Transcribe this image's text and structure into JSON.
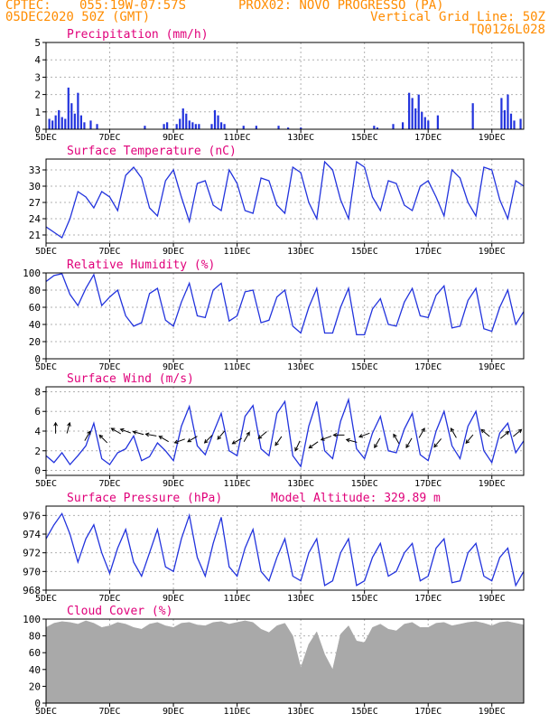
{
  "header": {
    "center_label": "CPTEC:",
    "coords": "055:19W-07:57S",
    "location": "PROX02: NOVO PROGRESSO (PA)",
    "run_date": "05DEC2020 50Z (GMT)",
    "grid_note": "Vertical Grid Line: 50Z",
    "model_code": "TQ0126L028"
  },
  "colors": {
    "header": "#ff8c00",
    "title": "#e0007a",
    "series": "#2233dd",
    "cloud": "#a9a9a9",
    "grid": "#b0b0b0"
  },
  "chart_data": [
    {
      "id": "precip",
      "type": "bar",
      "title": "Precipitation (mm/h)",
      "ylim": [
        0,
        5
      ],
      "yticks": [
        0,
        1,
        2,
        3,
        4,
        5
      ],
      "xticks": [
        "5DEC",
        "7DEC",
        "9DEC",
        "11DEC",
        "13DEC",
        "15DEC",
        "17DEC",
        "19DEC"
      ],
      "xlim_days": [
        5,
        20
      ],
      "x": [
        5.1,
        5.2,
        5.3,
        5.4,
        5.5,
        5.6,
        5.7,
        5.8,
        5.9,
        6.0,
        6.1,
        6.2,
        6.4,
        6.6,
        8.1,
        8.7,
        8.8,
        9.1,
        9.2,
        9.3,
        9.4,
        9.5,
        9.6,
        9.7,
        9.8,
        10.2,
        10.3,
        10.4,
        10.5,
        10.6,
        11.2,
        11.6,
        12.3,
        12.6,
        13.0,
        15.3,
        15.4,
        15.9,
        16.2,
        16.4,
        16.5,
        16.6,
        16.7,
        16.8,
        16.9,
        17.0,
        17.3,
        18.4,
        19.3,
        19.4,
        19.5,
        19.6,
        19.7,
        19.9
      ],
      "values": [
        0.6,
        0.5,
        0.8,
        1.1,
        0.7,
        0.6,
        2.4,
        1.5,
        0.9,
        2.1,
        0.8,
        0.4,
        0.5,
        0.3,
        0.2,
        0.3,
        0.4,
        0.3,
        0.6,
        1.2,
        0.9,
        0.5,
        0.4,
        0.3,
        0.3,
        0.3,
        1.1,
        0.8,
        0.4,
        0.3,
        0.2,
        0.2,
        0.2,
        0.1,
        0.1,
        0.2,
        0.1,
        0.3,
        0.4,
        2.1,
        1.8,
        1.2,
        2.0,
        1.0,
        0.7,
        0.5,
        0.8,
        1.5,
        1.8,
        1.1,
        2.0,
        0.9,
        0.5,
        0.6
      ]
    },
    {
      "id": "temp",
      "type": "line",
      "title": "Surface Temperature (nC)",
      "ylim": [
        19.5,
        35
      ],
      "yticks": [
        21,
        24,
        27,
        30,
        33
      ],
      "xticks": [
        "5DEC",
        "7DEC",
        "9DEC",
        "11DEC",
        "13DEC",
        "15DEC",
        "17DEC",
        "19DEC"
      ],
      "xlim_days": [
        5,
        20
      ],
      "x": [
        5.0,
        5.25,
        5.5,
        5.75,
        6.0,
        6.25,
        6.5,
        6.75,
        7.0,
        7.25,
        7.5,
        7.75,
        8.0,
        8.25,
        8.5,
        8.75,
        9.0,
        9.25,
        9.5,
        9.75,
        10.0,
        10.25,
        10.5,
        10.75,
        11.0,
        11.25,
        11.5,
        11.75,
        12.0,
        12.25,
        12.5,
        12.75,
        13.0,
        13.25,
        13.5,
        13.75,
        14.0,
        14.25,
        14.5,
        14.75,
        15.0,
        15.25,
        15.5,
        15.75,
        16.0,
        16.25,
        16.5,
        16.75,
        17.0,
        17.25,
        17.5,
        17.75,
        18.0,
        18.25,
        18.5,
        18.75,
        19.0,
        19.25,
        19.5,
        19.75,
        20.0
      ],
      "values": [
        22.5,
        21.5,
        20.5,
        24.0,
        29.0,
        28.0,
        26.0,
        29.0,
        28.0,
        25.5,
        32.0,
        33.5,
        31.5,
        26.0,
        24.5,
        31.0,
        33.0,
        28.0,
        23.5,
        30.5,
        31.0,
        26.5,
        25.5,
        33.0,
        30.5,
        25.5,
        25.0,
        31.5,
        31.0,
        26.5,
        25.0,
        33.5,
        32.5,
        27.0,
        24.0,
        34.5,
        33.0,
        27.5,
        24.0,
        34.5,
        33.5,
        28.0,
        25.5,
        31.0,
        30.5,
        26.5,
        25.5,
        30.0,
        31.0,
        28.0,
        24.5,
        33.0,
        31.5,
        27.0,
        24.5,
        33.5,
        33.0,
        27.5,
        24.0,
        31.0,
        30.0
      ]
    },
    {
      "id": "rh",
      "type": "line",
      "title": "Relative Humidity (%)",
      "ylim": [
        0,
        100
      ],
      "yticks": [
        0,
        20,
        40,
        60,
        80,
        100
      ],
      "xticks": [
        "5DEC",
        "7DEC",
        "9DEC",
        "11DEC",
        "13DEC",
        "15DEC",
        "17DEC",
        "19DEC"
      ],
      "xlim_days": [
        5,
        20
      ],
      "x": [
        5.0,
        5.25,
        5.5,
        5.75,
        6.0,
        6.25,
        6.5,
        6.75,
        7.0,
        7.25,
        7.5,
        7.75,
        8.0,
        8.25,
        8.5,
        8.75,
        9.0,
        9.25,
        9.5,
        9.75,
        10.0,
        10.25,
        10.5,
        10.75,
        11.0,
        11.25,
        11.5,
        11.75,
        12.0,
        12.25,
        12.5,
        12.75,
        13.0,
        13.25,
        13.5,
        13.75,
        14.0,
        14.25,
        14.5,
        14.75,
        15.0,
        15.25,
        15.5,
        15.75,
        16.0,
        16.25,
        16.5,
        16.75,
        17.0,
        17.25,
        17.5,
        17.75,
        18.0,
        18.25,
        18.5,
        18.75,
        19.0,
        19.25,
        19.5,
        19.75,
        20.0
      ],
      "values": [
        90,
        97,
        99,
        75,
        62,
        82,
        98,
        62,
        72,
        80,
        50,
        38,
        42,
        76,
        82,
        45,
        38,
        66,
        88,
        50,
        48,
        80,
        88,
        44,
        50,
        78,
        80,
        42,
        45,
        72,
        80,
        38,
        30,
        60,
        82,
        30,
        30,
        60,
        82,
        28,
        28,
        58,
        70,
        40,
        38,
        66,
        82,
        50,
        48,
        74,
        85,
        36,
        38,
        68,
        82,
        35,
        32,
        60,
        80,
        40,
        55
      ]
    },
    {
      "id": "wind",
      "type": "line",
      "title": "Surface Wind (m/s)",
      "ylim": [
        -0.5,
        8.5
      ],
      "yticks": [
        0,
        2,
        4,
        6,
        8
      ],
      "xticks": [
        "5DEC",
        "7DEC",
        "9DEC",
        "11DEC",
        "13DEC",
        "15DEC",
        "17DEC",
        "19DEC"
      ],
      "xlim_days": [
        5,
        20
      ],
      "x": [
        5.0,
        5.25,
        5.5,
        5.75,
        6.0,
        6.25,
        6.5,
        6.75,
        7.0,
        7.25,
        7.5,
        7.75,
        8.0,
        8.25,
        8.5,
        8.75,
        9.0,
        9.25,
        9.5,
        9.75,
        10.0,
        10.25,
        10.5,
        10.75,
        11.0,
        11.25,
        11.5,
        11.75,
        12.0,
        12.25,
        12.5,
        12.75,
        13.0,
        13.25,
        13.5,
        13.75,
        14.0,
        14.25,
        14.5,
        14.75,
        15.0,
        15.25,
        15.5,
        15.75,
        16.0,
        16.25,
        16.5,
        16.75,
        17.0,
        17.25,
        17.5,
        17.75,
        18.0,
        18.25,
        18.5,
        18.75,
        19.0,
        19.25,
        19.5,
        19.75,
        20.0
      ],
      "values": [
        1.5,
        0.8,
        1.8,
        0.6,
        1.5,
        2.5,
        4.8,
        1.2,
        0.6,
        1.8,
        2.2,
        3.5,
        1.0,
        1.4,
        2.8,
        2.0,
        1.0,
        4.5,
        6.5,
        2.5,
        1.6,
        3.8,
        5.8,
        2.0,
        1.5,
        5.5,
        6.6,
        2.2,
        1.5,
        5.8,
        7.0,
        1.5,
        0.4,
        4.5,
        7.0,
        2.0,
        1.2,
        5.0,
        7.2,
        2.2,
        1.2,
        3.8,
        5.5,
        2.0,
        1.8,
        4.2,
        5.8,
        1.6,
        1.0,
        4.0,
        6.0,
        2.5,
        1.2,
        4.5,
        6.0,
        2.0,
        0.8,
        3.8,
        4.8,
        1.8,
        3.0
      ],
      "arrows_x": [
        5.3,
        5.7,
        6.3,
        6.8,
        7.2,
        7.5,
        7.9,
        8.3,
        8.7,
        9.2,
        9.6,
        10.1,
        10.5,
        11.0,
        11.3,
        11.8,
        12.3,
        12.9,
        13.4,
        13.8,
        14.2,
        14.6,
        15.0,
        15.4,
        16.0,
        16.4,
        16.8,
        17.3,
        17.8,
        18.3,
        18.8,
        19.4,
        19.8
      ],
      "arrows_y": [
        4.3,
        4.3,
        3.5,
        3.2,
        4.0,
        4.0,
        3.8,
        3.6,
        3.2,
        3.0,
        3.2,
        3.2,
        3.6,
        3.0,
        3.4,
        3.6,
        3.0,
        2.5,
        2.6,
        3.3,
        3.6,
        3.0,
        3.6,
        2.8,
        3.2,
        2.8,
        3.8,
        2.8,
        3.8,
        3.2,
        3.8,
        3.6,
        3.8
      ],
      "arrows_angle": [
        90,
        75,
        60,
        135,
        150,
        160,
        165,
        170,
        150,
        200,
        210,
        225,
        230,
        210,
        60,
        220,
        235,
        245,
        215,
        200,
        180,
        165,
        200,
        240,
        120,
        240,
        60,
        230,
        120,
        230,
        140,
        40,
        40
      ]
    },
    {
      "id": "pressure",
      "type": "line",
      "title": "Surface Pressure (hPa)",
      "subtitle": "Model Altitude: 329.89 m",
      "ylim": [
        968,
        977
      ],
      "yticks": [
        968,
        970,
        972,
        974,
        976
      ],
      "xticks": [
        "5DEC",
        "7DEC",
        "9DEC",
        "11DEC",
        "13DEC",
        "15DEC",
        "17DEC",
        "19DEC"
      ],
      "xlim_days": [
        5,
        20
      ],
      "x": [
        5.0,
        5.25,
        5.5,
        5.75,
        6.0,
        6.25,
        6.5,
        6.75,
        7.0,
        7.25,
        7.5,
        7.75,
        8.0,
        8.25,
        8.5,
        8.75,
        9.0,
        9.25,
        9.5,
        9.75,
        10.0,
        10.25,
        10.5,
        10.75,
        11.0,
        11.25,
        11.5,
        11.75,
        12.0,
        12.25,
        12.5,
        12.75,
        13.0,
        13.25,
        13.5,
        13.75,
        14.0,
        14.25,
        14.5,
        14.75,
        15.0,
        15.25,
        15.5,
        15.75,
        16.0,
        16.25,
        16.5,
        16.75,
        17.0,
        17.25,
        17.5,
        17.75,
        18.0,
        18.25,
        18.5,
        18.75,
        19.0,
        19.25,
        19.5,
        19.75,
        20.0
      ],
      "values": [
        973.5,
        975.0,
        976.2,
        974.0,
        971.0,
        973.5,
        975.0,
        972.0,
        969.8,
        972.5,
        974.5,
        971.0,
        969.5,
        972.0,
        974.5,
        970.5,
        970.0,
        973.5,
        976.0,
        971.5,
        969.5,
        973.0,
        975.8,
        970.5,
        969.5,
        972.5,
        974.5,
        970.0,
        969.0,
        971.5,
        973.5,
        969.5,
        969.0,
        972.0,
        973.5,
        968.5,
        969.0,
        972.0,
        973.5,
        968.5,
        969.0,
        971.5,
        973.0,
        969.5,
        970.0,
        972.0,
        973.0,
        969.0,
        969.5,
        972.5,
        973.5,
        968.8,
        969.0,
        972.0,
        973.0,
        969.5,
        969.0,
        971.5,
        972.5,
        968.5,
        970.0
      ]
    },
    {
      "id": "cloud",
      "type": "area",
      "title": "Cloud Cover (%)",
      "ylim": [
        0,
        100
      ],
      "yticks": [
        0,
        20,
        40,
        60,
        80,
        100
      ],
      "xticks": [
        "5DEC",
        "7DEC",
        "9DEC",
        "11DEC",
        "13DEC",
        "15DEC",
        "17DEC",
        "19DEC"
      ],
      "xlim_days": [
        5,
        20
      ],
      "x": [
        5.0,
        5.25,
        5.5,
        5.75,
        6.0,
        6.25,
        6.5,
        6.75,
        7.0,
        7.25,
        7.5,
        7.75,
        8.0,
        8.25,
        8.5,
        8.75,
        9.0,
        9.25,
        9.5,
        9.75,
        10.0,
        10.25,
        10.5,
        10.75,
        11.0,
        11.25,
        11.5,
        11.75,
        12.0,
        12.25,
        12.5,
        12.75,
        13.0,
        13.25,
        13.5,
        13.75,
        14.0,
        14.25,
        14.5,
        14.75,
        15.0,
        15.25,
        15.5,
        15.75,
        16.0,
        16.25,
        16.5,
        16.75,
        17.0,
        17.25,
        17.5,
        17.75,
        18.0,
        18.25,
        18.5,
        18.75,
        19.0,
        19.25,
        19.5,
        19.75,
        20.0
      ],
      "values": [
        90,
        95,
        97,
        96,
        94,
        98,
        95,
        90,
        92,
        96,
        94,
        90,
        88,
        94,
        96,
        92,
        90,
        95,
        96,
        93,
        92,
        96,
        97,
        94,
        96,
        98,
        96,
        88,
        84,
        92,
        95,
        80,
        42,
        70,
        85,
        58,
        40,
        82,
        92,
        74,
        72,
        90,
        94,
        88,
        86,
        94,
        96,
        90,
        90,
        95,
        96,
        92,
        94,
        96,
        97,
        95,
        92,
        96,
        97,
        95,
        93
      ]
    }
  ]
}
